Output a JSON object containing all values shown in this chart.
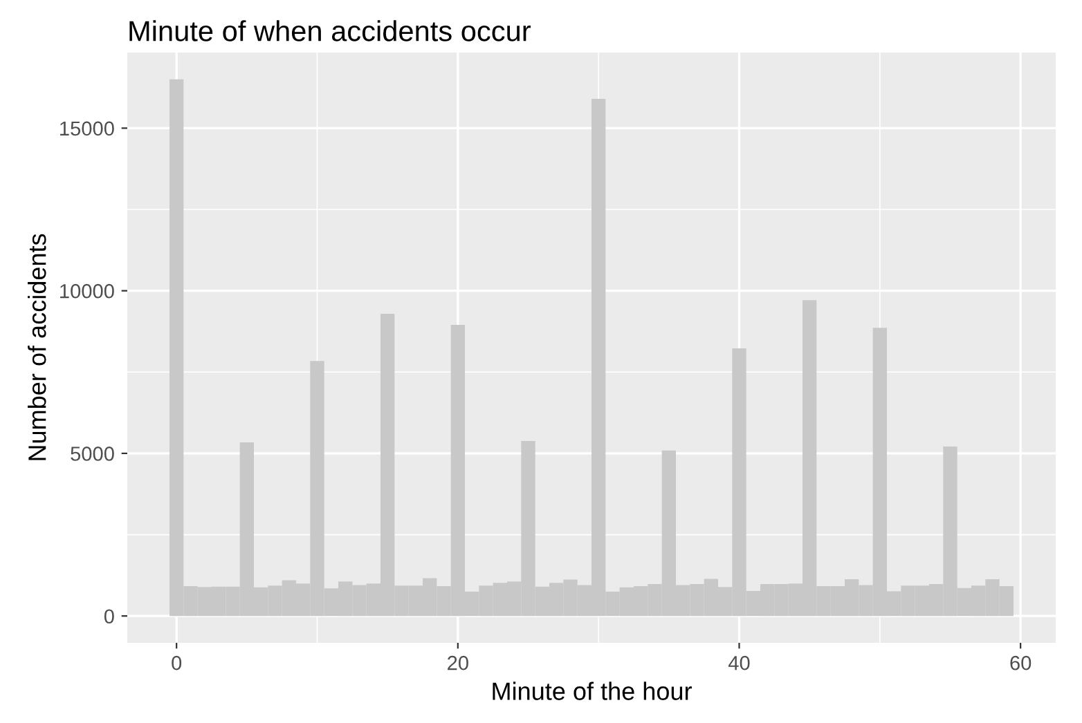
{
  "chart_data": {
    "type": "histogram",
    "title": "Minute of when accidents occur",
    "xlabel": "Minute of the hour",
    "ylabel": "Number of accidents",
    "bins": [
      -0.5,
      0.5,
      1.5,
      2.5,
      3.5,
      4.5,
      5.5,
      6.5,
      7.5,
      8.5,
      9.5,
      10.5,
      11.5,
      12.5,
      13.5,
      14.5,
      15.5,
      16.5,
      17.5,
      18.5,
      19.5,
      20.5,
      21.5,
      22.5,
      23.5,
      24.5,
      25.5,
      26.5,
      27.5,
      28.5,
      29.5,
      30.5,
      31.5,
      32.5,
      33.5,
      34.5,
      35.5,
      36.5,
      37.5,
      38.5,
      39.5,
      40.5,
      41.5,
      42.5,
      43.5,
      44.5,
      45.5,
      46.5,
      47.5,
      48.5,
      49.5,
      50.5,
      51.5,
      52.5,
      53.5,
      54.5,
      55.5,
      56.5,
      57.5,
      58.5,
      59.5
    ],
    "values": [
      16500,
      920,
      890,
      900,
      900,
      5340,
      880,
      935,
      1100,
      1000,
      7840,
      850,
      1060,
      950,
      1000,
      9290,
      935,
      935,
      1160,
      920,
      8950,
      750,
      935,
      1020,
      1060,
      5380,
      900,
      1020,
      1120,
      950,
      15900,
      750,
      880,
      920,
      980,
      5090,
      950,
      980,
      1140,
      890,
      8230,
      770,
      980,
      980,
      1000,
      9710,
      920,
      920,
      1130,
      950,
      8860,
      760,
      935,
      935,
      980,
      5210,
      860,
      935,
      1130,
      920
    ],
    "color": "#c8c8c8",
    "xlim": [
      -3.5,
      62.5
    ],
    "xticks": [
      0,
      20,
      40,
      60
    ],
    "ylim": [
      -825,
      17325
    ],
    "yticks": [
      0,
      5000,
      10000,
      15000
    ],
    "grid": true
  }
}
